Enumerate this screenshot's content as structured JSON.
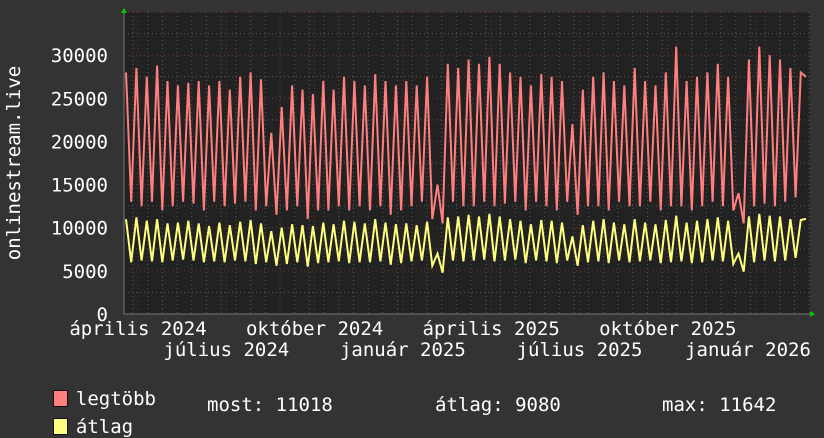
{
  "chart_data": {
    "type": "line",
    "ylabel": "onlinestream.live",
    "ylim": [
      0,
      30000
    ],
    "yticks": [
      "0",
      "5000",
      "10000",
      "15000",
      "20000",
      "25000",
      "30000"
    ],
    "xtick_labels": [
      "április 2024",
      "július 2024",
      "október 2024",
      "január 2025",
      "április 2025",
      "július 2025",
      "október 2025",
      "január 2026"
    ],
    "grid": true,
    "colors": {
      "background": "#333333",
      "plot": "#222222",
      "grid": "#555555",
      "major_grid": "#7a3030",
      "legtobb": "#ff7f7f",
      "atlag": "#ffff7f",
      "arrow": "#00cc00"
    },
    "series": [
      {
        "name": "legtöbb",
        "values": [
          28000,
          13000,
          28500,
          12500,
          27500,
          13000,
          28800,
          12000,
          27000,
          12500,
          26500,
          13000,
          26800,
          12800,
          27000,
          12000,
          26500,
          13000,
          27000,
          12500,
          26000,
          12800,
          27500,
          13000,
          28000,
          12000,
          27200,
          12500,
          21000,
          11500,
          24000,
          12000,
          26500,
          12500,
          26000,
          11000,
          25500,
          12000,
          27000,
          12000,
          26000,
          12500,
          27500,
          12000,
          27000,
          12500,
          26500,
          12000,
          27800,
          12500,
          27000,
          11500,
          26500,
          12000,
          27000,
          12500,
          26500,
          13000,
          27500,
          11000,
          15000,
          10500,
          29000,
          13000,
          28500,
          12500,
          29500,
          12500,
          29000,
          13000,
          29800,
          12500,
          29000,
          12800,
          28000,
          13000,
          27500,
          12000,
          26500,
          13000,
          27800,
          12500,
          27500,
          12000,
          27000,
          13000,
          22000,
          11500,
          26000,
          12500,
          27500,
          12500,
          28000,
          12000,
          27000,
          13000,
          26500,
          12500,
          28500,
          12500,
          27000,
          13000,
          26500,
          12000,
          28000,
          12500,
          31000,
          12500,
          27000,
          12000,
          27500,
          12500,
          28000,
          13000,
          29000,
          12500,
          27500,
          12000,
          14000,
          10500,
          29500,
          12500,
          31000,
          12800,
          30000,
          12500,
          29500,
          13000,
          28500,
          13500,
          28000,
          27500
        ]
      },
      {
        "name": "átlag",
        "values": [
          11000,
          6000,
          11200,
          6200,
          10800,
          6100,
          11000,
          6000,
          10500,
          6200,
          10600,
          6300,
          10800,
          6200,
          10500,
          6000,
          10200,
          6100,
          10600,
          6000,
          10300,
          6200,
          10700,
          6100,
          10900,
          5800,
          10500,
          6000,
          9600,
          5600,
          10000,
          5800,
          10400,
          6000,
          10300,
          5500,
          10200,
          5900,
          10600,
          6000,
          10400,
          6100,
          10800,
          5900,
          10700,
          6000,
          10500,
          6000,
          11000,
          6100,
          10600,
          5700,
          10400,
          5900,
          10500,
          6100,
          10300,
          6200,
          10700,
          5600,
          7000,
          4800,
          11200,
          6200,
          11300,
          6100,
          11500,
          6200,
          11300,
          6300,
          11600,
          6100,
          11300,
          6200,
          11000,
          6300,
          10800,
          5900,
          10400,
          6200,
          10900,
          6100,
          10800,
          5900,
          10600,
          6200,
          9000,
          5600,
          10300,
          6000,
          10800,
          6100,
          11000,
          5900,
          10600,
          6200,
          10400,
          6000,
          11000,
          6100,
          10600,
          6200,
          10400,
          5900,
          10900,
          6000,
          11400,
          6100,
          10600,
          5900,
          10800,
          6000,
          11000,
          6200,
          11200,
          6100,
          10800,
          5800,
          7000,
          4900,
          11300,
          6000,
          11600,
          6200,
          11400,
          6100,
          11300,
          6200,
          11000,
          6500,
          10900,
          11018
        ]
      }
    ]
  },
  "legend": {
    "items": [
      {
        "label": "legtöbb"
      },
      {
        "label": "átlag"
      }
    ],
    "stats": {
      "now": "most: 11018",
      "avg": "átlag: 9080",
      "max": "max: 11642"
    }
  }
}
